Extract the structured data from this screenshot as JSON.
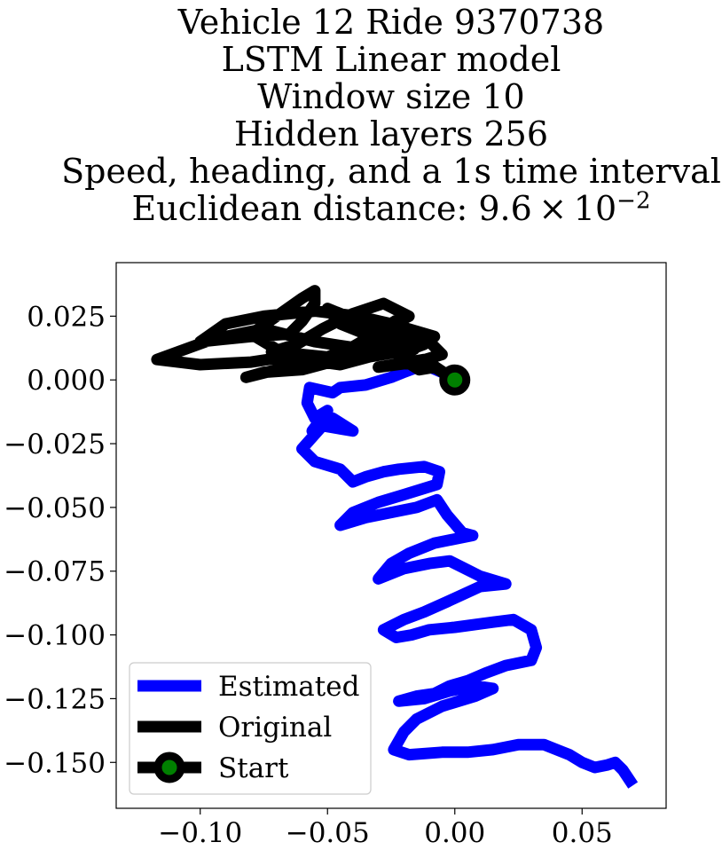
{
  "chart_data": {
    "type": "line",
    "title_lines": [
      "Vehicle 12 Ride 9370738",
      "LSTM Linear model",
      "Window size 10",
      "Hidden layers 256",
      "Speed, heading, and a 1s time interval"
    ],
    "distance_prefix": "Euclidean distance: 9.6 × 10",
    "distance_exponent": "−2",
    "xlabel": "",
    "ylabel": "",
    "xlim": [
      -0.133,
      0.083
    ],
    "ylim": [
      -0.168,
      0.046
    ],
    "x_ticks": [
      {
        "value": -0.1,
        "label": "−0.10"
      },
      {
        "value": -0.05,
        "label": "−0.05"
      },
      {
        "value": 0.0,
        "label": "0.00"
      },
      {
        "value": 0.05,
        "label": "0.05"
      }
    ],
    "y_ticks": [
      {
        "value": 0.025,
        "label": "0.025"
      },
      {
        "value": 0.0,
        "label": "0.000"
      },
      {
        "value": -0.025,
        "label": "−0.025"
      },
      {
        "value": -0.05,
        "label": "−0.050"
      },
      {
        "value": -0.075,
        "label": "−0.075"
      },
      {
        "value": -0.1,
        "label": "−0.100"
      },
      {
        "value": -0.125,
        "label": "−0.125"
      },
      {
        "value": -0.15,
        "label": "−0.150"
      }
    ],
    "grid": false,
    "legend_position": "lower-left",
    "series": [
      {
        "name": "Estimated",
        "color": "#0000ff",
        "points": [
          [
            0.0,
            0.0
          ],
          [
            -0.005,
            0.003
          ],
          [
            -0.012,
            0.006
          ],
          [
            -0.02,
            0.003
          ],
          [
            -0.025,
            0.001
          ],
          [
            -0.035,
            -0.002
          ],
          [
            -0.045,
            -0.003
          ],
          [
            -0.048,
            -0.005
          ],
          [
            -0.057,
            -0.003
          ],
          [
            -0.058,
            -0.009
          ],
          [
            -0.055,
            -0.015
          ],
          [
            -0.05,
            -0.012
          ],
          [
            -0.056,
            -0.02
          ],
          [
            -0.048,
            -0.015
          ],
          [
            -0.04,
            -0.02
          ],
          [
            -0.052,
            -0.018
          ],
          [
            -0.06,
            -0.027
          ],
          [
            -0.055,
            -0.032
          ],
          [
            -0.045,
            -0.035
          ],
          [
            -0.04,
            -0.04
          ],
          [
            -0.035,
            -0.038
          ],
          [
            -0.028,
            -0.036
          ],
          [
            -0.022,
            -0.035
          ],
          [
            -0.012,
            -0.034
          ],
          [
            -0.006,
            -0.036
          ],
          [
            -0.007,
            -0.041
          ],
          [
            -0.02,
            -0.045
          ],
          [
            -0.03,
            -0.048
          ],
          [
            -0.04,
            -0.052
          ],
          [
            -0.045,
            -0.057
          ],
          [
            -0.035,
            -0.054
          ],
          [
            -0.025,
            -0.052
          ],
          [
            -0.015,
            -0.05
          ],
          [
            -0.007,
            -0.047
          ],
          [
            -0.003,
            -0.053
          ],
          [
            0.003,
            -0.06
          ],
          [
            0.007,
            -0.061
          ],
          [
            -0.008,
            -0.064
          ],
          [
            -0.018,
            -0.068
          ],
          [
            -0.025,
            -0.072
          ],
          [
            -0.03,
            -0.078
          ],
          [
            -0.02,
            -0.074
          ],
          [
            -0.01,
            -0.072
          ],
          [
            -0.002,
            -0.071
          ],
          [
            0.01,
            -0.077
          ],
          [
            0.02,
            -0.08
          ],
          [
            0.01,
            -0.081
          ],
          [
            -0.003,
            -0.087
          ],
          [
            -0.012,
            -0.091
          ],
          [
            -0.02,
            -0.094
          ],
          [
            -0.028,
            -0.098
          ],
          [
            -0.023,
            -0.101
          ],
          [
            -0.017,
            -0.1
          ],
          [
            -0.01,
            -0.098
          ],
          [
            0.0,
            -0.097
          ],
          [
            0.015,
            -0.095
          ],
          [
            0.023,
            -0.094
          ],
          [
            0.03,
            -0.098
          ],
          [
            0.032,
            -0.105
          ],
          [
            0.03,
            -0.11
          ],
          [
            0.02,
            -0.112
          ],
          [
            0.012,
            -0.115
          ],
          [
            0.005,
            -0.118
          ],
          [
            -0.002,
            -0.12
          ],
          [
            -0.008,
            -0.123
          ],
          [
            -0.015,
            -0.124
          ],
          [
            -0.022,
            -0.126
          ],
          [
            -0.012,
            -0.125
          ],
          [
            -0.002,
            -0.122
          ],
          [
            0.008,
            -0.12
          ],
          [
            0.015,
            -0.121
          ],
          [
            0.008,
            -0.124
          ],
          [
            -0.005,
            -0.128
          ],
          [
            -0.015,
            -0.133
          ],
          [
            -0.02,
            -0.138
          ],
          [
            -0.024,
            -0.145
          ],
          [
            -0.018,
            -0.147
          ],
          [
            -0.005,
            -0.146
          ],
          [
            0.005,
            -0.146
          ],
          [
            0.015,
            -0.145
          ],
          [
            0.025,
            -0.143
          ],
          [
            0.035,
            -0.143
          ],
          [
            0.045,
            -0.147
          ],
          [
            0.05,
            -0.15
          ],
          [
            0.055,
            -0.152
          ],
          [
            0.06,
            -0.151
          ],
          [
            0.063,
            -0.15
          ],
          [
            0.066,
            -0.153
          ],
          [
            0.07,
            -0.159
          ]
        ]
      },
      {
        "name": "Original",
        "color": "#000000",
        "points": [
          [
            0.0,
            0.0
          ],
          [
            -0.008,
            0.005
          ],
          [
            -0.014,
            0.004
          ],
          [
            -0.022,
            0.009
          ],
          [
            -0.016,
            0.012
          ],
          [
            -0.04,
            0.008
          ],
          [
            -0.06,
            0.01
          ],
          [
            -0.08,
            0.007
          ],
          [
            -0.1,
            0.006
          ],
          [
            -0.117,
            0.008
          ],
          [
            -0.095,
            0.016
          ],
          [
            -0.075,
            0.02
          ],
          [
            -0.055,
            0.015
          ],
          [
            -0.035,
            0.012
          ],
          [
            -0.02,
            0.011
          ],
          [
            -0.012,
            0.014
          ],
          [
            -0.008,
            0.017
          ],
          [
            -0.025,
            0.022
          ],
          [
            -0.038,
            0.025
          ],
          [
            -0.055,
            0.027
          ],
          [
            -0.075,
            0.025
          ],
          [
            -0.09,
            0.022
          ],
          [
            -0.1,
            0.015
          ],
          [
            -0.08,
            0.017
          ],
          [
            -0.065,
            0.018
          ],
          [
            -0.06,
            0.023
          ],
          [
            -0.055,
            0.03
          ],
          [
            -0.055,
            0.035
          ],
          [
            -0.06,
            0.032
          ],
          [
            -0.07,
            0.025
          ],
          [
            -0.08,
            0.018
          ],
          [
            -0.07,
            0.012
          ],
          [
            -0.06,
            0.005
          ],
          [
            -0.05,
            0.007
          ],
          [
            -0.04,
            0.012
          ],
          [
            -0.03,
            0.019
          ],
          [
            -0.022,
            0.024
          ],
          [
            -0.028,
            0.018
          ],
          [
            -0.035,
            0.013
          ],
          [
            -0.045,
            0.008
          ],
          [
            -0.06,
            0.004
          ],
          [
            -0.075,
            0.003
          ],
          [
            -0.082,
            0.001
          ],
          [
            -0.07,
            0.004
          ],
          [
            -0.055,
            0.007
          ],
          [
            -0.04,
            0.013
          ],
          [
            -0.028,
            0.02
          ],
          [
            -0.018,
            0.025
          ],
          [
            -0.028,
            0.03
          ],
          [
            -0.04,
            0.026
          ],
          [
            -0.052,
            0.02
          ],
          [
            -0.062,
            0.014
          ],
          [
            -0.072,
            0.011
          ],
          [
            -0.06,
            0.008
          ],
          [
            -0.045,
            0.006
          ],
          [
            -0.03,
            0.01
          ],
          [
            -0.015,
            0.013
          ],
          [
            -0.03,
            0.016
          ],
          [
            -0.045,
            0.022
          ],
          [
            -0.05,
            0.028
          ],
          [
            -0.04,
            0.024
          ],
          [
            -0.025,
            0.018
          ],
          [
            -0.01,
            0.015
          ],
          [
            -0.005,
            0.01
          ],
          [
            -0.015,
            0.007
          ],
          [
            -0.03,
            0.005
          ],
          [
            -0.012,
            0.008
          ],
          [
            -0.006,
            0.004
          ],
          [
            0.0,
            0.0
          ]
        ]
      }
    ],
    "start_point": {
      "name": "Start",
      "x": 0.0,
      "y": 0.0,
      "marker_color": "#008000",
      "edge_color": "#000000"
    }
  }
}
